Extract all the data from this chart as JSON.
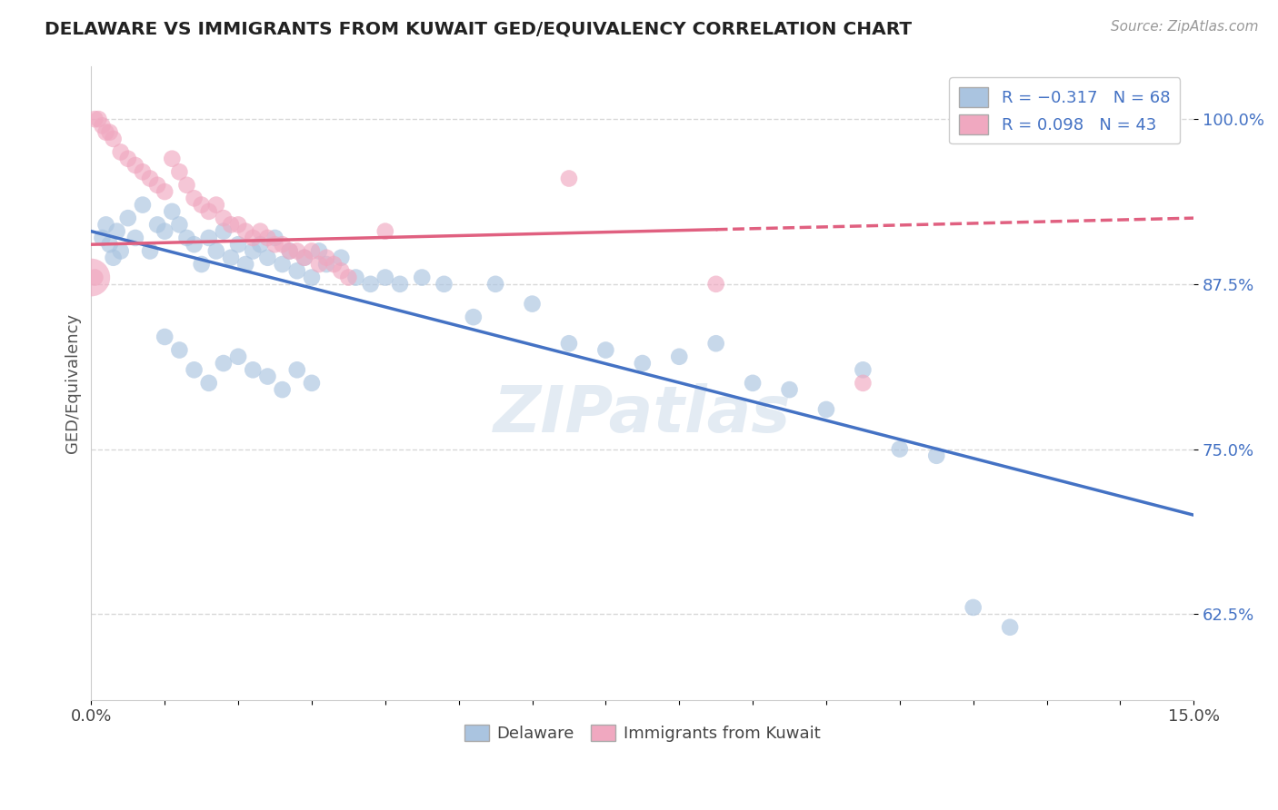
{
  "title": "DELAWARE VS IMMIGRANTS FROM KUWAIT GED/EQUIVALENCY CORRELATION CHART",
  "source": "Source: ZipAtlas.com",
  "ylabel": "GED/Equivalency",
  "xlim": [
    0.0,
    15.0
  ],
  "ylim": [
    56.0,
    104.0
  ],
  "yticks": [
    62.5,
    75.0,
    87.5,
    100.0
  ],
  "xtick_labels": [
    "0.0%",
    "15.0%"
  ],
  "ytick_labels": [
    "62.5%",
    "75.0%",
    "87.5%",
    "100.0%"
  ],
  "legend_entry1": "R = -0.317   N = 68",
  "legend_entry2": "R = 0.098   N = 43",
  "legend_label1": "Delaware",
  "legend_label2": "Immigrants from Kuwait",
  "blue_color": "#aac4e0",
  "pink_color": "#f0a8c0",
  "blue_line_color": "#4472c4",
  "pink_line_color": "#e06080",
  "blue_scatter_x": [
    0.15,
    0.2,
    0.25,
    0.3,
    0.35,
    0.4,
    0.5,
    0.6,
    0.7,
    0.8,
    0.9,
    1.0,
    1.1,
    1.2,
    1.3,
    1.4,
    1.5,
    1.6,
    1.7,
    1.8,
    1.9,
    2.0,
    2.1,
    2.2,
    2.3,
    2.4,
    2.5,
    2.6,
    2.7,
    2.8,
    2.9,
    3.0,
    3.1,
    3.2,
    3.4,
    3.6,
    3.8,
    4.0,
    4.2,
    4.5,
    4.8,
    5.2,
    5.5,
    6.0,
    6.5,
    7.0,
    7.5,
    8.0,
    8.5,
    9.0,
    9.5,
    10.0,
    10.5,
    11.0,
    11.5,
    12.0,
    12.5,
    1.0,
    1.2,
    1.4,
    1.6,
    1.8,
    2.0,
    2.2,
    2.4,
    2.6,
    2.8,
    3.0
  ],
  "blue_scatter_y": [
    91.0,
    92.0,
    90.5,
    89.5,
    91.5,
    90.0,
    92.5,
    91.0,
    93.5,
    90.0,
    92.0,
    91.5,
    93.0,
    92.0,
    91.0,
    90.5,
    89.0,
    91.0,
    90.0,
    91.5,
    89.5,
    90.5,
    89.0,
    90.0,
    90.5,
    89.5,
    91.0,
    89.0,
    90.0,
    88.5,
    89.5,
    88.0,
    90.0,
    89.0,
    89.5,
    88.0,
    87.5,
    88.0,
    87.5,
    88.0,
    87.5,
    85.0,
    87.5,
    86.0,
    83.0,
    82.5,
    81.5,
    82.0,
    83.0,
    80.0,
    79.5,
    78.0,
    81.0,
    75.0,
    74.5,
    63.0,
    61.5,
    83.5,
    82.5,
    81.0,
    80.0,
    81.5,
    82.0,
    81.0,
    80.5,
    79.5,
    81.0,
    80.0
  ],
  "pink_scatter_x": [
    0.05,
    0.1,
    0.15,
    0.2,
    0.25,
    0.3,
    0.4,
    0.5,
    0.6,
    0.7,
    0.8,
    0.9,
    1.0,
    1.1,
    1.2,
    1.3,
    1.4,
    1.5,
    1.6,
    1.7,
    1.8,
    1.9,
    2.0,
    2.1,
    2.2,
    2.3,
    2.4,
    2.5,
    2.6,
    2.7,
    2.8,
    2.9,
    3.0,
    3.1,
    3.2,
    3.3,
    3.4,
    3.5,
    4.0,
    6.5,
    8.5,
    10.5,
    0.05
  ],
  "pink_scatter_y": [
    100.0,
    100.0,
    99.5,
    99.0,
    99.0,
    98.5,
    97.5,
    97.0,
    96.5,
    96.0,
    95.5,
    95.0,
    94.5,
    97.0,
    96.0,
    95.0,
    94.0,
    93.5,
    93.0,
    93.5,
    92.5,
    92.0,
    92.0,
    91.5,
    91.0,
    91.5,
    91.0,
    90.5,
    90.5,
    90.0,
    90.0,
    89.5,
    90.0,
    89.0,
    89.5,
    89.0,
    88.5,
    88.0,
    91.5,
    95.5,
    87.5,
    80.0,
    88.0
  ],
  "pink_large_x": 0.0,
  "pink_large_y": 88.0,
  "blue_trend_x0": 0.0,
  "blue_trend_y0": 91.5,
  "blue_trend_x1": 15.0,
  "blue_trend_y1": 70.0,
  "pink_trend_x0": 0.0,
  "pink_trend_y0": 90.5,
  "pink_trend_x1": 15.0,
  "pink_trend_y1": 92.5,
  "pink_solid_end": 8.5,
  "background_color": "#ffffff",
  "grid_color": "#d8d8d8",
  "watermark": "ZIPatlas",
  "watermark_color": "#c8d8e8"
}
